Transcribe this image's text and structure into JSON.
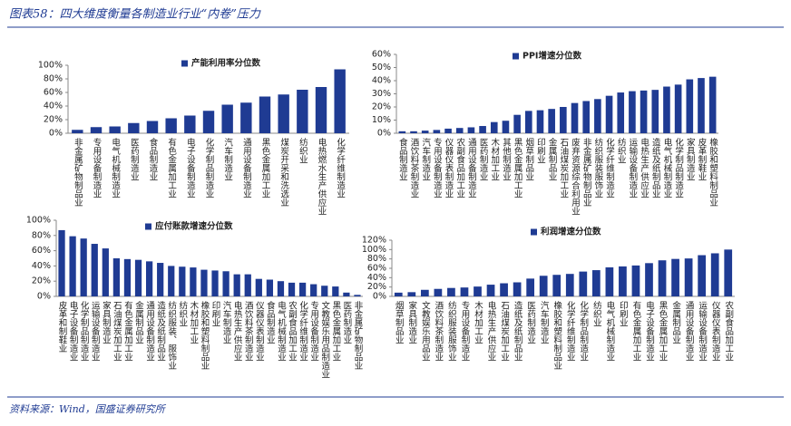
{
  "header": {
    "title": "图表58：四大维度衡量各制造业行业“内卷”压力"
  },
  "source": "资料来源：Wind，国盛证券研究所",
  "chart_data": [
    {
      "type": "bar",
      "legend": "top",
      "categories": [
        "非金属矿物制品业",
        "专用设备制造业",
        "电气机械制造业",
        "医药制造业",
        "食品制造业",
        "有色金属加工业",
        "电子设备制造业",
        "化学制品制造业",
        "汽车制造业",
        "通用设备制造业",
        "黑色金属加工业",
        "煤炭开采和洗选业",
        "纺织业",
        "电热燃水生产供应业",
        "化学纤维制造业"
      ],
      "series": [
        {
          "name": "产能利用率分位数",
          "color": "#1f3b93",
          "values": [
            5,
            9,
            10,
            15,
            18,
            22,
            26,
            33,
            42,
            45,
            54,
            57,
            64,
            68,
            94
          ]
        }
      ],
      "ylim": [
        0,
        100
      ],
      "yticks": [
        {
          "value": 0,
          "label": "0%"
        },
        {
          "value": 20,
          "label": "20%"
        },
        {
          "value": 40,
          "label": "40%"
        },
        {
          "value": 60,
          "label": "60%"
        },
        {
          "value": 80,
          "label": "80%"
        },
        {
          "value": 100,
          "label": "100%"
        }
      ]
    },
    {
      "type": "bar",
      "legend": "top",
      "categories": [
        "食品制造业",
        "酒饮料茶制造业",
        "汽车制造业",
        "专用设备制造业",
        "仪器仪表制造业",
        "农副食品加工业",
        "通用设备制造业",
        "医药制造业",
        "木材加工业",
        "其他制造业",
        "黑色金属加工业",
        "烟草制品业",
        "印刷业",
        "金属制品业",
        "石油煤炭加工业",
        "废弃资源综合利用业",
        "非金属矿物制品业",
        "纺织服装服饰业",
        "化学纤维制造业",
        "纺织业",
        "运输设备制造业",
        "电热生产供应业",
        "造纸及纸制品业",
        "电气机械制造业",
        "化学制品制造业",
        "家具制造业",
        "皮革制鞋业",
        "橡胶和塑料制品业"
      ],
      "series": [
        {
          "name": "PPI增速分位数",
          "color": "#1f3b93",
          "values": [
            1.5,
            1.5,
            2,
            2.5,
            3.5,
            4,
            4.5,
            5.5,
            8.5,
            9.5,
            14,
            17,
            17.5,
            18.5,
            20,
            23,
            24.5,
            26,
            28.5,
            31,
            32,
            32.5,
            33,
            35.5,
            37,
            41,
            42,
            43
          ]
        }
      ],
      "ylim": [
        0,
        60
      ],
      "yticks": [
        {
          "value": 0,
          "label": "0%"
        },
        {
          "value": 10,
          "label": "10%"
        },
        {
          "value": 20,
          "label": "20%"
        },
        {
          "value": 30,
          "label": "30%"
        },
        {
          "value": 40,
          "label": "40%"
        },
        {
          "value": 50,
          "label": "50%"
        },
        {
          "value": 60,
          "label": "60%"
        }
      ]
    },
    {
      "type": "bar",
      "legend": "top",
      "categories": [
        "皮革和制鞋业",
        "电子设备制造业",
        "化学制品制造业",
        "运输设备制造业",
        "家具制造业",
        "石油煤炭加工业",
        "有色金属加工业",
        "金属制品业",
        "通用设备制造业",
        "造纸及纸制品业",
        "纺织服装、服饰业",
        "纺织业",
        "木材加工业",
        "橡胶和塑料制品业",
        "印刷业",
        "汽车制造业",
        "电热生产供应业",
        "酒饮料茶制造业",
        "仪器仪表制造业",
        "食品制造业",
        "电气机械制造业",
        "农副食品加工业",
        "化学纤维制造业",
        "专用设备制造业",
        "文教娱乐用品制造业",
        "黑色金属加工业",
        "医药制造业",
        "非金属矿物制品业"
      ],
      "series": [
        {
          "name": "应付账款增速分位数",
          "color": "#1f3b93",
          "values": [
            87,
            79,
            76,
            69,
            63,
            50,
            49,
            48,
            46,
            44,
            40,
            39,
            38,
            35,
            34,
            33,
            29,
            29,
            23,
            22,
            20,
            18,
            18,
            16,
            14,
            13,
            5,
            2
          ]
        }
      ],
      "ylim": [
        0,
        100
      ],
      "yticks": [
        {
          "value": 0,
          "label": "0%"
        },
        {
          "value": 20,
          "label": "20%"
        },
        {
          "value": 40,
          "label": "40%"
        },
        {
          "value": 60,
          "label": "60%"
        },
        {
          "value": 80,
          "label": "80%"
        },
        {
          "value": 100,
          "label": "100%"
        }
      ]
    },
    {
      "type": "bar",
      "legend": "top",
      "categories": [
        "烟草制品业",
        "家具制造业",
        "文教娱乐用品业",
        "酒饮料茶制造业",
        "纺织服装服饰业",
        "专用设备制造业",
        "木材加工业",
        "电热生产供应业",
        "石油煤炭加工业",
        "造纸及纸制品业",
        "医药制造业",
        "汽车制造业",
        "橡胶和塑料制品业",
        "化学纤维制造业",
        "化学制品制造业",
        "纺织业",
        "电气机械制造业",
        "印刷业",
        "有色金属加工业",
        "电子设备制造业",
        "黑色金属加工业",
        "金属制品业",
        "通用设备制造业",
        "运输设备制造业",
        "仪器仪表制造业",
        "农副食品加工业"
      ],
      "series": [
        {
          "name": "利润增速分位数",
          "color": "#1f3b93",
          "values": [
            8,
            9,
            14,
            16,
            18,
            19,
            21,
            25,
            28,
            30,
            38,
            44,
            46,
            48,
            53,
            56,
            62,
            64,
            66,
            71,
            77,
            80,
            81,
            88,
            92,
            100
          ]
        }
      ],
      "ylim": [
        0,
        120
      ],
      "yticks": [
        {
          "value": 0,
          "label": "0%"
        },
        {
          "value": 20,
          "label": "20%"
        },
        {
          "value": 40,
          "label": "40%"
        },
        {
          "value": 60,
          "label": "60%"
        },
        {
          "value": 80,
          "label": "80%"
        },
        {
          "value": 100,
          "label": "100%"
        },
        {
          "value": 120,
          "label": "120%"
        }
      ]
    }
  ]
}
